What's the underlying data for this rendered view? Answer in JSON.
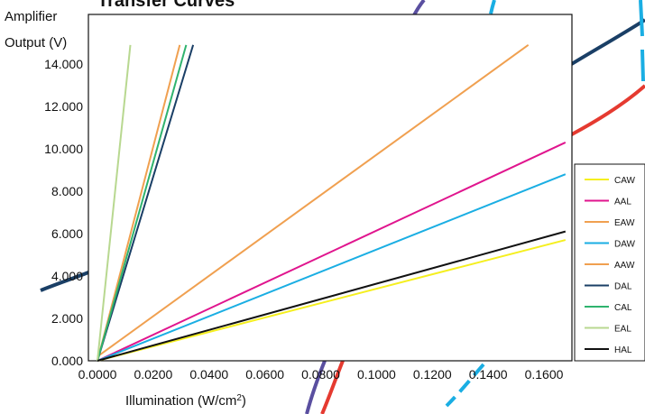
{
  "chart_data": {
    "type": "line",
    "title": "Transfer Curves",
    "ylabel_lines": [
      "Amplifier",
      "Output (V)"
    ],
    "xlabel_text": "Illumination (W/cm",
    "xlabel_sup": "2",
    "xlabel_close": ")",
    "xlim": [
      0,
      0.18
    ],
    "ylim": [
      0,
      15.5
    ],
    "x_ticks": [
      "0.0000",
      "0.0200",
      "0.0400",
      "0.0600",
      "0.0800",
      "0.1000",
      "0.1200",
      "0.1400",
      "0.1600"
    ],
    "x_tick_values": [
      0,
      0.02,
      0.04,
      0.06,
      0.08,
      0.1,
      0.12,
      0.14,
      0.16
    ],
    "y_ticks": [
      "0.000",
      "2.000",
      "4.000",
      "6.000",
      "8.000",
      "10.000",
      "12.000",
      "14.000"
    ],
    "y_tick_values": [
      0,
      2,
      4,
      6,
      8,
      10,
      12,
      14
    ],
    "grid": false,
    "legend_position": "right",
    "series": [
      {
        "name": "CAW",
        "color": "#f5ef1f",
        "x": [
          0,
          0.1677
        ],
        "y": [
          0,
          5.7
        ]
      },
      {
        "name": "AAL",
        "color": "#e0158e",
        "x": [
          0,
          0.1677
        ],
        "y": [
          0,
          10.3
        ]
      },
      {
        "name": "EAW",
        "color": "#f0a050",
        "x": [
          0,
          0.1544
        ],
        "y": [
          0.2,
          14.9
        ]
      },
      {
        "name": "DAW",
        "color": "#1aaee3",
        "x": [
          0,
          0.1677
        ],
        "y": [
          0,
          8.8
        ]
      },
      {
        "name": "AAW",
        "color": "#f0a050",
        "x": [
          0,
          0.0295
        ],
        "y": [
          0,
          14.9
        ]
      },
      {
        "name": "DAL",
        "color": "#1a3f66",
        "x": [
          0,
          0.0343
        ],
        "y": [
          0,
          14.9
        ]
      },
      {
        "name": "CAL",
        "color": "#2fb36e",
        "x": [
          0,
          0.0318
        ],
        "y": [
          0,
          14.9
        ]
      },
      {
        "name": "EAL",
        "color": "#b8d890",
        "x": [
          0,
          0.0118
        ],
        "y": [
          0,
          14.9
        ]
      },
      {
        "name": "HAL",
        "color": "#111111",
        "x": [
          0,
          0.1677
        ],
        "y": [
          0,
          6.1
        ]
      }
    ]
  }
}
